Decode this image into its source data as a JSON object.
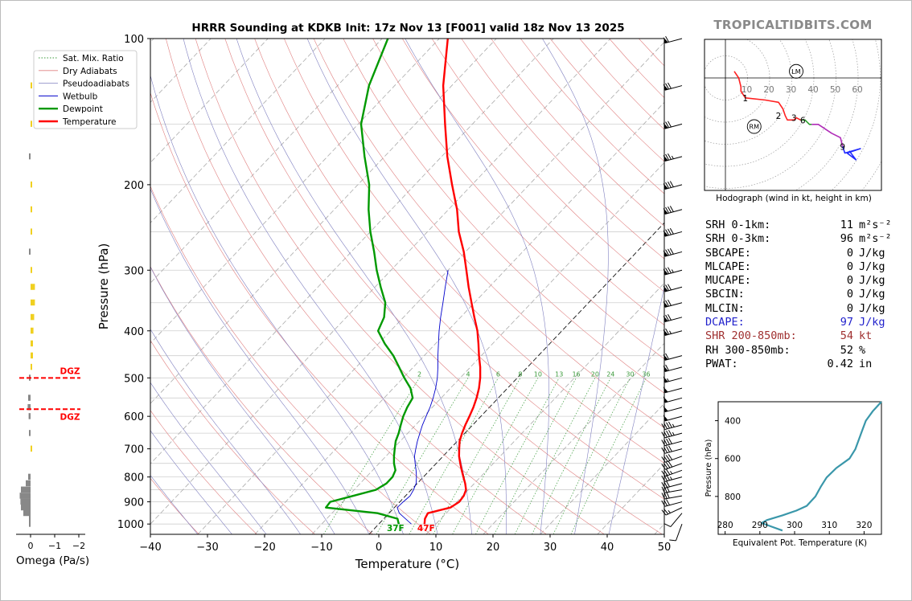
{
  "title": "HRRR Sounding at KDKB Init: 17z Nov 13 [F001] valid 18z Nov 13 2025",
  "brand": "TROPICALTIDBITS.COM",
  "legend": [
    "Sat. Mix. Ratio",
    "Dry Adiabats",
    "Pseudoadiabats",
    "Wetbulb",
    "Dewpoint",
    "Temperature"
  ],
  "colors": {
    "temperature": "#ff0000",
    "dewpoint": "#009900",
    "wetbulb": "#0000cc",
    "dry_adiabat": "#e08080",
    "pseudoadiabat": "#8080c0",
    "mix_ratio": "#3a9a3a",
    "dgz": "#ff0000",
    "hodo_0_3": "#ff2020",
    "hodo_3_6": "#2ca02c",
    "hodo_6_9": "#b02cb8",
    "hodo_9_12": "#1f28ff",
    "theta_e": "#3a97aa",
    "omega_up": "#f0d020",
    "omega_down": "#888888",
    "brand": "#8a8a8a",
    "dcape": "#2222cc",
    "shear": "#a03030"
  },
  "chart_data": [
    {
      "type": "line",
      "name": "skew-t",
      "xlabel": "Temperature (°C)",
      "ylabel": "Pressure (hPa)",
      "xlim": [
        -40,
        50
      ],
      "ylim": [
        1050,
        100
      ],
      "y_scale": "log",
      "x_ticks": [
        -40,
        -30,
        -20,
        -10,
        0,
        10,
        20,
        30,
        40,
        50
      ],
      "y_ticks": [
        1000,
        900,
        800,
        700,
        600,
        500,
        400,
        300,
        200,
        100
      ],
      "grid": true,
      "surface_temp_label": "47F",
      "surface_dewpoint_label": "37F",
      "mixing_ratio_labels": [
        "2",
        "4",
        "6",
        "8",
        "10",
        "13",
        "16",
        "20",
        "24",
        "30",
        "36"
      ],
      "series": [
        {
          "name": "Temperature",
          "points": [
            [
              1000,
              8.0
            ],
            [
              975,
              7.2
            ],
            [
              950,
              6.8
            ],
            [
              925,
              9.8
            ],
            [
              900,
              10.4
            ],
            [
              875,
              10.2
            ],
            [
              850,
              9.6
            ],
            [
              825,
              8.4
            ],
            [
              800,
              7.0
            ],
            [
              775,
              5.6
            ],
            [
              750,
              4.2
            ],
            [
              725,
              2.8
            ],
            [
              700,
              1.6
            ],
            [
              675,
              0.4
            ],
            [
              650,
              -0.5
            ],
            [
              625,
              -1.3
            ],
            [
              600,
              -2.0
            ],
            [
              575,
              -2.8
            ],
            [
              550,
              -3.8
            ],
            [
              525,
              -5.0
            ],
            [
              500,
              -6.5
            ],
            [
              475,
              -8.3
            ],
            [
              450,
              -10.4
            ],
            [
              425,
              -12.5
            ],
            [
              400,
              -14.8
            ],
            [
              375,
              -17.6
            ],
            [
              350,
              -20.5
            ],
            [
              325,
              -23.6
            ],
            [
              300,
              -26.8
            ],
            [
              275,
              -30.3
            ],
            [
              250,
              -34.5
            ],
            [
              225,
              -38.5
            ],
            [
              200,
              -43.5
            ],
            [
              175,
              -49.0
            ],
            [
              150,
              -54.8
            ],
            [
              125,
              -61.5
            ],
            [
              100,
              -68.5
            ]
          ]
        },
        {
          "name": "Dewpoint",
          "points": [
            [
              1000,
              3.5
            ],
            [
              975,
              2.4
            ],
            [
              950,
              -2.0
            ],
            [
              925,
              -12.0
            ],
            [
              900,
              -12.2
            ],
            [
              875,
              -9.2
            ],
            [
              850,
              -6.2
            ],
            [
              825,
              -5.4
            ],
            [
              800,
              -5.4
            ],
            [
              775,
              -6.0
            ],
            [
              750,
              -7.4
            ],
            [
              725,
              -8.6
            ],
            [
              700,
              -9.7
            ],
            [
              675,
              -10.8
            ],
            [
              650,
              -11.6
            ],
            [
              625,
              -12.6
            ],
            [
              600,
              -13.6
            ],
            [
              575,
              -14.4
            ],
            [
              550,
              -15.0
            ],
            [
              525,
              -17.0
            ],
            [
              500,
              -19.8
            ],
            [
              475,
              -22.5
            ],
            [
              450,
              -25.4
            ],
            [
              425,
              -28.9
            ],
            [
              400,
              -32.2
            ],
            [
              375,
              -33.4
            ],
            [
              350,
              -35.6
            ],
            [
              325,
              -39.0
            ],
            [
              300,
              -42.5
            ],
            [
              275,
              -46.0
            ],
            [
              250,
              -50.0
            ],
            [
              225,
              -54.0
            ],
            [
              200,
              -58.0
            ],
            [
              175,
              -63.5
            ],
            [
              150,
              -69.5
            ],
            [
              125,
              -74.5
            ],
            [
              100,
              -79.0
            ]
          ]
        },
        {
          "name": "Wetbulb",
          "points": [
            [
              1000,
              5.7
            ],
            [
              950,
              1.8
            ],
            [
              925,
              0.5
            ],
            [
              900,
              0.6
            ],
            [
              875,
              0.8
            ],
            [
              850,
              0.4
            ],
            [
              825,
              -0.2
            ],
            [
              800,
              -1.2
            ],
            [
              775,
              -2.4
            ],
            [
              750,
              -3.7
            ],
            [
              725,
              -5.0
            ],
            [
              700,
              -6.0
            ],
            [
              675,
              -7.0
            ],
            [
              650,
              -7.9
            ],
            [
              625,
              -8.8
            ],
            [
              600,
              -9.6
            ],
            [
              575,
              -10.4
            ],
            [
              550,
              -11.4
            ],
            [
              525,
              -12.6
            ],
            [
              500,
              -14.0
            ],
            [
              475,
              -15.7
            ],
            [
              450,
              -17.6
            ],
            [
              425,
              -19.5
            ],
            [
              400,
              -21.5
            ],
            [
              375,
              -23.5
            ],
            [
              350,
              -25.5
            ],
            [
              325,
              -27.7
            ],
            [
              300,
              -30.0
            ]
          ]
        }
      ],
      "dgz": {
        "top": 500,
        "bottom": 580,
        "label": "DGZ"
      }
    },
    {
      "type": "line",
      "name": "hodograph",
      "caption": "Hodograph (wind in kt, height in km)",
      "ring_labels": [
        "10",
        "20",
        "30",
        "40",
        "50",
        "60"
      ],
      "height_labels": [
        "1",
        "2",
        "3",
        "6",
        "9"
      ],
      "markers": {
        "LM": [
          32,
          3
        ],
        "RM": [
          13,
          -22
        ]
      },
      "u_v_kt": {
        "0_3km": [
          [
            4,
            3
          ],
          [
            6,
            0
          ],
          [
            7,
            -4
          ],
          [
            7,
            -6
          ],
          [
            9,
            -9
          ],
          [
            18,
            -10
          ],
          [
            24,
            -11
          ],
          [
            26,
            -14
          ],
          [
            27,
            -17
          ],
          [
            28,
            -19
          ],
          [
            31,
            -19
          ],
          [
            32,
            -18
          ],
          [
            34,
            -19
          ]
        ],
        "3_6km": [
          [
            34,
            -19
          ],
          [
            36,
            -19
          ],
          [
            38,
            -21
          ],
          [
            39,
            -21
          ]
        ],
        "6_9km": [
          [
            39,
            -21
          ],
          [
            42,
            -21
          ],
          [
            48,
            -25
          ],
          [
            52,
            -27
          ],
          [
            53,
            -31
          ]
        ],
        "9_12km": [
          [
            53,
            -31
          ],
          [
            54,
            -34
          ],
          [
            61,
            -32
          ],
          [
            55,
            -34
          ],
          [
            59,
            -37
          ],
          [
            56,
            -33
          ]
        ]
      }
    },
    {
      "type": "line",
      "name": "theta-e profile",
      "xlabel": "Equivalent Pot. Temperature (K)",
      "ylabel": "Pressure (hPa)",
      "xlim": [
        278,
        325
      ],
      "ylim": [
        1000,
        300
      ],
      "x_ticks": [
        280,
        290,
        300,
        310,
        320
      ],
      "y_ticks": [
        400,
        600,
        800
      ],
      "points": [
        [
          980,
          296.5
        ],
        [
          960,
          293.5
        ],
        [
          940,
          290.5
        ],
        [
          925,
          292.0
        ],
        [
          900,
          296.5
        ],
        [
          875,
          300.5
        ],
        [
          850,
          303.5
        ],
        [
          800,
          306.0
        ],
        [
          750,
          307.5
        ],
        [
          700,
          309.2
        ],
        [
          650,
          312.0
        ],
        [
          600,
          315.8
        ],
        [
          550,
          317.5
        ],
        [
          500,
          318.5
        ],
        [
          450,
          319.5
        ],
        [
          400,
          320.5
        ],
        [
          350,
          322.5
        ],
        [
          300,
          325.0
        ]
      ]
    },
    {
      "type": "bar",
      "name": "omega",
      "xlabel": "Omega (Pa/s)",
      "x_ticks": [
        "0",
        "−1",
        "−2"
      ],
      "bars": [
        [
          1000,
          0.0
        ],
        [
          975,
          0.05
        ],
        [
          950,
          0.3
        ],
        [
          925,
          0.4
        ],
        [
          900,
          0.42
        ],
        [
          875,
          0.45
        ],
        [
          850,
          0.4
        ],
        [
          825,
          0.2
        ],
        [
          800,
          0.1
        ],
        [
          700,
          -0.02
        ],
        [
          650,
          0.05
        ],
        [
          600,
          0.08
        ],
        [
          575,
          0.12
        ],
        [
          550,
          0.1
        ],
        [
          500,
          0.05
        ],
        [
          475,
          -0.05
        ],
        [
          450,
          -0.1
        ],
        [
          425,
          -0.1
        ],
        [
          400,
          -0.12
        ],
        [
          375,
          -0.15
        ],
        [
          350,
          -0.18
        ],
        [
          325,
          -0.18
        ],
        [
          300,
          -0.05
        ],
        [
          275,
          0.0
        ],
        [
          250,
          -0.03
        ],
        [
          225,
          -0.03
        ],
        [
          200,
          -0.03
        ],
        [
          175,
          0.02
        ],
        [
          150,
          -0.02
        ],
        [
          125,
          -0.02
        ]
      ]
    }
  ],
  "winds_kt": [
    [
      1000,
      200,
      12
    ],
    [
      950,
      220,
      12
    ],
    [
      925,
      245,
      25
    ],
    [
      900,
      255,
      28
    ],
    [
      875,
      260,
      30
    ],
    [
      850,
      260,
      32
    ],
    [
      825,
      255,
      32
    ],
    [
      800,
      255,
      35
    ],
    [
      775,
      250,
      36
    ],
    [
      750,
      250,
      38
    ],
    [
      725,
      250,
      38
    ],
    [
      700,
      255,
      40
    ],
    [
      675,
      255,
      42
    ],
    [
      650,
      255,
      44
    ],
    [
      625,
      255,
      46
    ],
    [
      600,
      255,
      48
    ],
    [
      575,
      255,
      48
    ],
    [
      550,
      255,
      50
    ],
    [
      525,
      255,
      52
    ],
    [
      500,
      255,
      55
    ],
    [
      475,
      255,
      58
    ],
    [
      450,
      255,
      60
    ],
    [
      400,
      255,
      65
    ],
    [
      375,
      255,
      68
    ],
    [
      350,
      255,
      70
    ],
    [
      325,
      255,
      72
    ],
    [
      300,
      255,
      75
    ],
    [
      275,
      255,
      80
    ],
    [
      250,
      255,
      82
    ],
    [
      225,
      255,
      80
    ],
    [
      200,
      255,
      78
    ],
    [
      175,
      255,
      75
    ],
    [
      150,
      255,
      72
    ],
    [
      125,
      255,
      70
    ],
    [
      100,
      255,
      60
    ]
  ],
  "stats": [
    {
      "label": "SRH 0-1km:",
      "value": "11",
      "unit": "m²s⁻²",
      "color": "#000000"
    },
    {
      "label": "SRH 0-3km:",
      "value": "96",
      "unit": "m²s⁻²",
      "color": "#000000"
    },
    {
      "label": "SBCAPE:",
      "value": "0",
      "unit": "J/kg",
      "color": "#000000"
    },
    {
      "label": "MLCAPE:",
      "value": "0",
      "unit": "J/kg",
      "color": "#000000"
    },
    {
      "label": "MUCAPE:",
      "value": "0",
      "unit": "J/kg",
      "color": "#000000"
    },
    {
      "label": "SBCIN:",
      "value": "0",
      "unit": "J/kg",
      "color": "#000000"
    },
    {
      "label": "MLCIN:",
      "value": "0",
      "unit": "J/kg",
      "color": "#000000"
    },
    {
      "label": "DCAPE:",
      "value": "97",
      "unit": "J/kg",
      "color": "#2222cc"
    },
    {
      "label": "SHR 200-850mb:",
      "value": "54",
      "unit": "kt",
      "color": "#a03030"
    },
    {
      "label": "RH 300-850mb:",
      "value": "52",
      "unit": "%",
      "color": "#000000"
    },
    {
      "label": "PWAT:",
      "value": "0.42",
      "unit": "in",
      "color": "#000000"
    }
  ]
}
